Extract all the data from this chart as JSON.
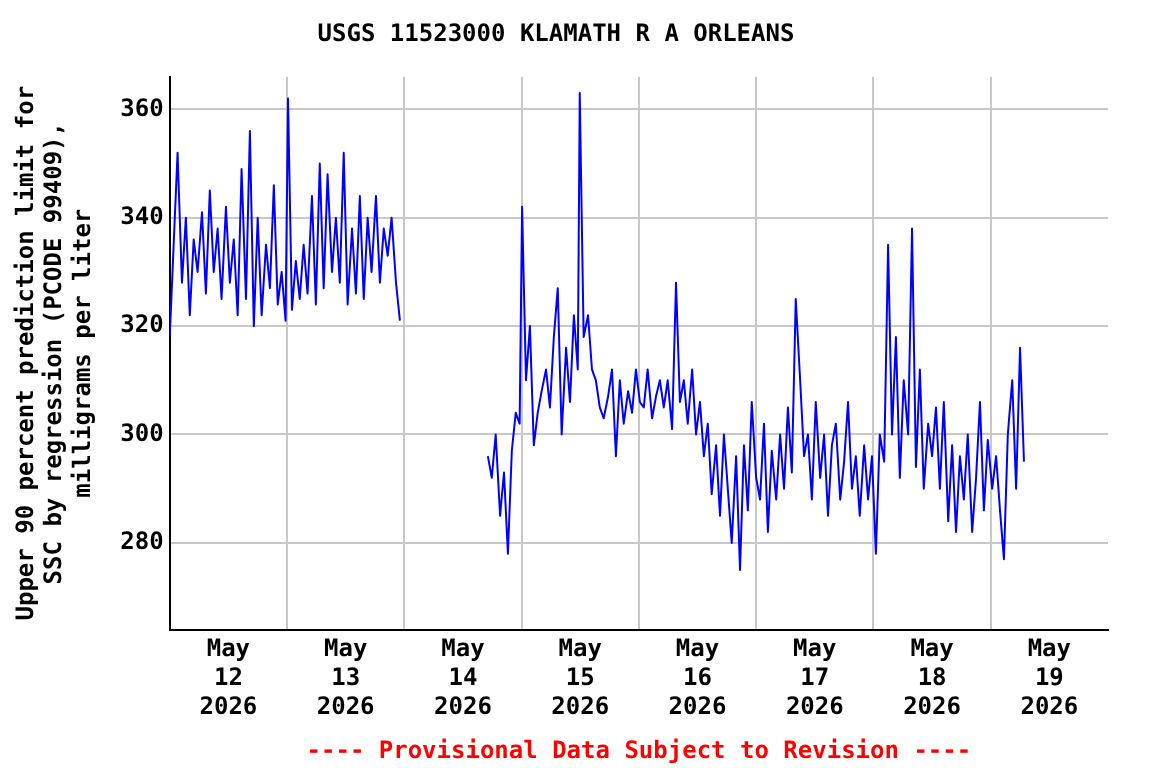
{
  "chart_data": {
    "type": "line",
    "title": "USGS 11523000 KLAMATH R A ORLEANS",
    "ylabel": "Upper 90 percent prediction limit for SSC by regression (PCODE 99409), milligrams per liter",
    "annotations": [
      "---- Provisional Data Subject to Revision ----"
    ],
    "xlim": [
      "2026-05-12T00:00",
      "2026-05-20T00:00"
    ],
    "xticks": [
      {
        "value": "2026-05-12T12:00",
        "label": "May 12 2026"
      },
      {
        "value": "2026-05-13T00:00",
        "label": null
      },
      {
        "value": "2026-05-13T12:00",
        "label": "May 13 2026"
      },
      {
        "value": "2026-05-14T00:00",
        "label": null
      },
      {
        "value": "2026-05-14T12:00",
        "label": "May 14 2026"
      },
      {
        "value": "2026-05-15T00:00",
        "label": null
      },
      {
        "value": "2026-05-15T12:00",
        "label": "May 15 2026"
      },
      {
        "value": "2026-05-16T00:00",
        "label": null
      },
      {
        "value": "2026-05-16T12:00",
        "label": "May 16 2026"
      },
      {
        "value": "2026-05-17T00:00",
        "label": null
      },
      {
        "value": "2026-05-17T12:00",
        "label": "May 17 2026"
      },
      {
        "value": "2026-05-18T00:00",
        "label": null
      },
      {
        "value": "2026-05-18T12:00",
        "label": "May 18 2026"
      },
      {
        "value": "2026-05-19T00:00",
        "label": null
      },
      {
        "value": "2026-05-19T12:00",
        "label": "May 19 2026"
      }
    ],
    "ylim": [
      264,
      366
    ],
    "yticks": [
      280,
      300,
      320,
      340,
      360
    ],
    "grid": true,
    "legend": false,
    "marker": "none",
    "line_style": "solid",
    "series": [
      {
        "color": "#0000ff",
        "x": [
          "2026-05-12T00:00",
          "2026-05-12T00:48",
          "2026-05-12T01:36",
          "2026-05-12T02:30",
          "2026-05-12T03:18",
          "2026-05-12T04:06",
          "2026-05-12T04:54",
          "2026-05-12T05:42",
          "2026-05-12T06:36",
          "2026-05-12T07:24",
          "2026-05-12T08:12",
          "2026-05-12T09:00",
          "2026-05-12T09:48",
          "2026-05-12T10:36",
          "2026-05-12T11:30",
          "2026-05-12T12:18",
          "2026-05-12T13:06",
          "2026-05-12T13:54",
          "2026-05-12T14:42",
          "2026-05-12T15:36",
          "2026-05-12T16:24",
          "2026-05-12T17:12",
          "2026-05-12T18:00",
          "2026-05-12T18:48",
          "2026-05-12T19:42",
          "2026-05-12T20:30",
          "2026-05-12T21:18",
          "2026-05-12T22:06",
          "2026-05-12T22:54",
          "2026-05-12T23:42",
          "2026-05-13T00:12",
          "2026-05-13T01:00",
          "2026-05-13T01:48",
          "2026-05-13T02:36",
          "2026-05-13T03:24",
          "2026-05-13T04:12",
          "2026-05-13T05:06",
          "2026-05-13T05:54",
          "2026-05-13T06:42",
          "2026-05-13T07:30",
          "2026-05-13T08:18",
          "2026-05-13T09:12",
          "2026-05-13T10:00",
          "2026-05-13T10:48",
          "2026-05-13T11:36",
          "2026-05-13T12:24",
          "2026-05-13T13:18",
          "2026-05-13T14:06",
          "2026-05-13T14:54",
          "2026-05-13T15:42",
          "2026-05-13T16:30",
          "2026-05-13T17:18",
          "2026-05-13T18:12",
          "2026-05-13T19:00",
          "2026-05-13T19:48",
          "2026-05-13T20:36",
          "2026-05-13T21:24",
          "2026-05-13T22:18",
          "2026-05-13T23:06",
          "2026-05-13T23:30",
          "2026-05-14T17:06",
          "2026-05-14T17:54",
          "2026-05-14T18:42",
          "2026-05-14T19:36",
          "2026-05-14T20:24",
          "2026-05-14T21:12",
          "2026-05-14T22:00",
          "2026-05-14T22:48",
          "2026-05-14T23:36",
          "2026-05-15T00:06",
          "2026-05-15T00:54",
          "2026-05-15T01:42",
          "2026-05-15T02:30",
          "2026-05-15T03:18",
          "2026-05-15T04:06",
          "2026-05-15T05:00",
          "2026-05-15T05:48",
          "2026-05-15T06:36",
          "2026-05-15T07:24",
          "2026-05-15T08:12",
          "2026-05-15T09:06",
          "2026-05-15T09:54",
          "2026-05-15T10:42",
          "2026-05-15T11:30",
          "2026-05-15T11:54",
          "2026-05-15T12:42",
          "2026-05-15T13:36",
          "2026-05-15T14:24",
          "2026-05-15T15:12",
          "2026-05-15T16:00",
          "2026-05-15T16:48",
          "2026-05-15T17:42",
          "2026-05-15T18:30",
          "2026-05-15T19:18",
          "2026-05-15T20:06",
          "2026-05-15T20:54",
          "2026-05-15T21:48",
          "2026-05-15T22:36",
          "2026-05-15T23:24",
          "2026-05-16T00:12",
          "2026-05-16T01:00",
          "2026-05-16T01:48",
          "2026-05-16T02:42",
          "2026-05-16T03:30",
          "2026-05-16T04:18",
          "2026-05-16T05:06",
          "2026-05-16T05:54",
          "2026-05-16T06:48",
          "2026-05-16T07:36",
          "2026-05-16T08:24",
          "2026-05-16T09:12",
          "2026-05-16T10:00",
          "2026-05-16T10:54",
          "2026-05-16T11:42",
          "2026-05-16T12:30",
          "2026-05-16T13:18",
          "2026-05-16T14:06",
          "2026-05-16T14:54",
          "2026-05-16T15:48",
          "2026-05-16T16:36",
          "2026-05-16T17:24",
          "2026-05-16T18:12",
          "2026-05-16T19:00",
          "2026-05-16T19:54",
          "2026-05-16T20:42",
          "2026-05-16T21:30",
          "2026-05-16T22:18",
          "2026-05-16T23:06",
          "2026-05-17T00:00",
          "2026-05-17T00:48",
          "2026-05-17T01:36",
          "2026-05-17T02:24",
          "2026-05-17T03:12",
          "2026-05-17T04:06",
          "2026-05-17T04:54",
          "2026-05-17T05:42",
          "2026-05-17T06:30",
          "2026-05-17T07:18",
          "2026-05-17T08:06",
          "2026-05-17T09:00",
          "2026-05-17T09:48",
          "2026-05-17T10:36",
          "2026-05-17T11:24",
          "2026-05-17T12:12",
          "2026-05-17T13:06",
          "2026-05-17T13:54",
          "2026-05-17T14:42",
          "2026-05-17T15:30",
          "2026-05-17T16:18",
          "2026-05-17T17:12",
          "2026-05-17T18:00",
          "2026-05-17T18:48",
          "2026-05-17T19:36",
          "2026-05-17T20:24",
          "2026-05-17T21:12",
          "2026-05-17T22:06",
          "2026-05-17T22:54",
          "2026-05-17T23:42",
          "2026-05-18T00:30",
          "2026-05-18T01:18",
          "2026-05-18T02:12",
          "2026-05-18T03:00",
          "2026-05-18T03:48",
          "2026-05-18T04:36",
          "2026-05-18T05:24",
          "2026-05-18T06:12",
          "2026-05-18T07:06",
          "2026-05-18T07:54",
          "2026-05-18T08:42",
          "2026-05-18T09:30",
          "2026-05-18T10:18",
          "2026-05-18T11:12",
          "2026-05-18T12:00",
          "2026-05-18T12:48",
          "2026-05-18T13:36",
          "2026-05-18T14:24",
          "2026-05-18T15:18",
          "2026-05-18T16:06",
          "2026-05-18T16:54",
          "2026-05-18T17:42",
          "2026-05-18T18:30",
          "2026-05-18T19:18",
          "2026-05-18T20:12",
          "2026-05-18T21:00",
          "2026-05-18T21:48",
          "2026-05-18T22:36",
          "2026-05-18T23:24",
          "2026-05-19T00:18",
          "2026-05-19T01:06",
          "2026-05-19T01:54",
          "2026-05-19T02:42",
          "2026-05-19T03:30",
          "2026-05-19T04:24",
          "2026-05-19T05:12",
          "2026-05-19T06:00",
          "2026-05-19T06:48"
        ],
        "values": [
          318,
          335,
          352,
          328,
          340,
          322,
          336,
          330,
          341,
          326,
          345,
          330,
          338,
          325,
          342,
          328,
          336,
          322,
          349,
          325,
          356,
          320,
          340,
          322,
          335,
          327,
          346,
          324,
          330,
          321,
          362,
          323,
          332,
          325,
          335,
          326,
          344,
          324,
          350,
          327,
          348,
          330,
          340,
          328,
          352,
          324,
          338,
          326,
          344,
          325,
          340,
          330,
          344,
          328,
          338,
          333,
          340,
          328,
          321,
          null,
          296,
          292,
          300,
          285,
          293,
          278,
          297,
          304,
          302,
          342,
          310,
          320,
          298,
          304,
          308,
          312,
          305,
          318,
          327,
          300,
          316,
          306,
          322,
          312,
          363,
          318,
          322,
          312,
          310,
          305,
          303,
          307,
          312,
          296,
          310,
          302,
          308,
          304,
          312,
          306,
          305,
          312,
          303,
          307,
          310,
          305,
          310,
          301,
          328,
          306,
          310,
          302,
          312,
          300,
          306,
          296,
          302,
          289,
          298,
          285,
          300,
          290,
          280,
          296,
          275,
          298,
          286,
          306,
          292,
          288,
          302,
          282,
          297,
          288,
          300,
          290,
          305,
          293,
          325,
          310,
          296,
          300,
          288,
          306,
          292,
          300,
          285,
          298,
          302,
          288,
          295,
          306,
          290,
          296,
          285,
          298,
          288,
          296,
          278,
          300,
          295,
          335,
          300,
          318,
          292,
          310,
          300,
          338,
          294,
          312,
          290,
          302,
          296,
          305,
          290,
          306,
          284,
          298,
          282,
          296,
          288,
          300,
          282,
          292,
          306,
          286,
          299,
          290,
          296,
          286,
          277,
          300,
          310,
          290,
          316,
          295
        ]
      }
    ]
  }
}
